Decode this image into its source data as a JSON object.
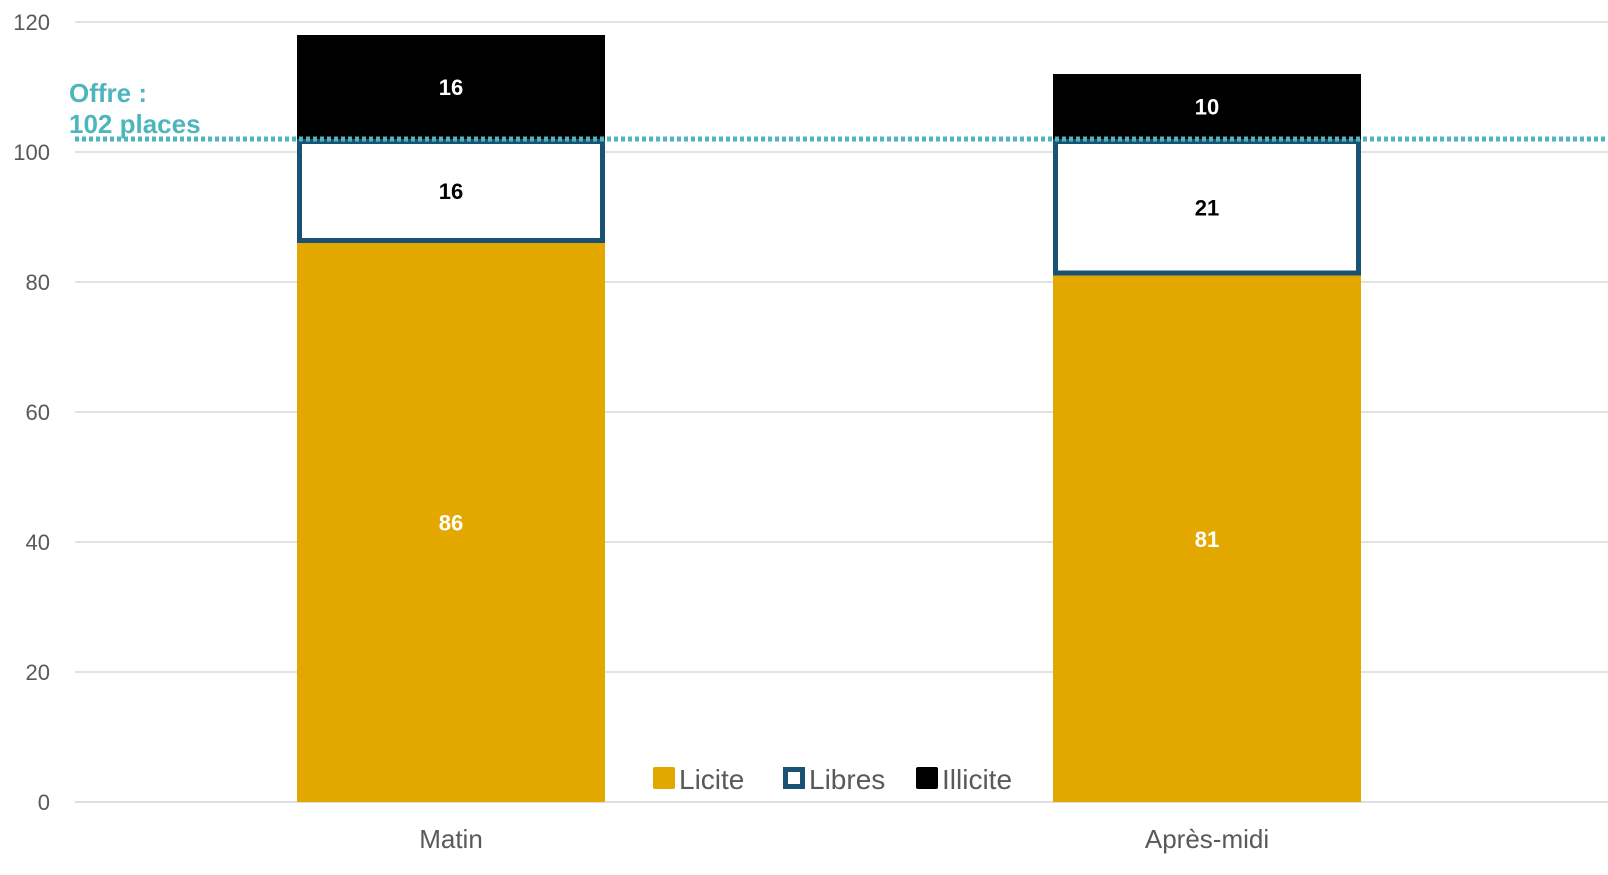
{
  "chart_data": {
    "type": "bar",
    "stacked": true,
    "categories": [
      "Matin",
      "Après-midi"
    ],
    "series": [
      {
        "name": "Licite",
        "values": [
          86,
          81
        ],
        "color": "#E3A800",
        "label_color": "#ffffff",
        "style": "filled"
      },
      {
        "name": "Libres",
        "values": [
          16,
          21
        ],
        "color": "#1A5276",
        "label_color": "#000000",
        "style": "outlined"
      },
      {
        "name": "Illicite",
        "values": [
          16,
          10
        ],
        "color": "#000000",
        "label_color": "#ffffff",
        "style": "filled"
      }
    ],
    "ylim": [
      0,
      120
    ],
    "yticks": [
      0,
      20,
      40,
      60,
      80,
      100,
      120
    ],
    "grid": true,
    "legend_position": "bottom-center",
    "reference_line": {
      "value": 102,
      "label_line1": "Offre :",
      "label_line2": "102 places",
      "color": "#4DB6BD",
      "style": "dotted"
    },
    "title": "",
    "xlabel": "",
    "ylabel": ""
  }
}
